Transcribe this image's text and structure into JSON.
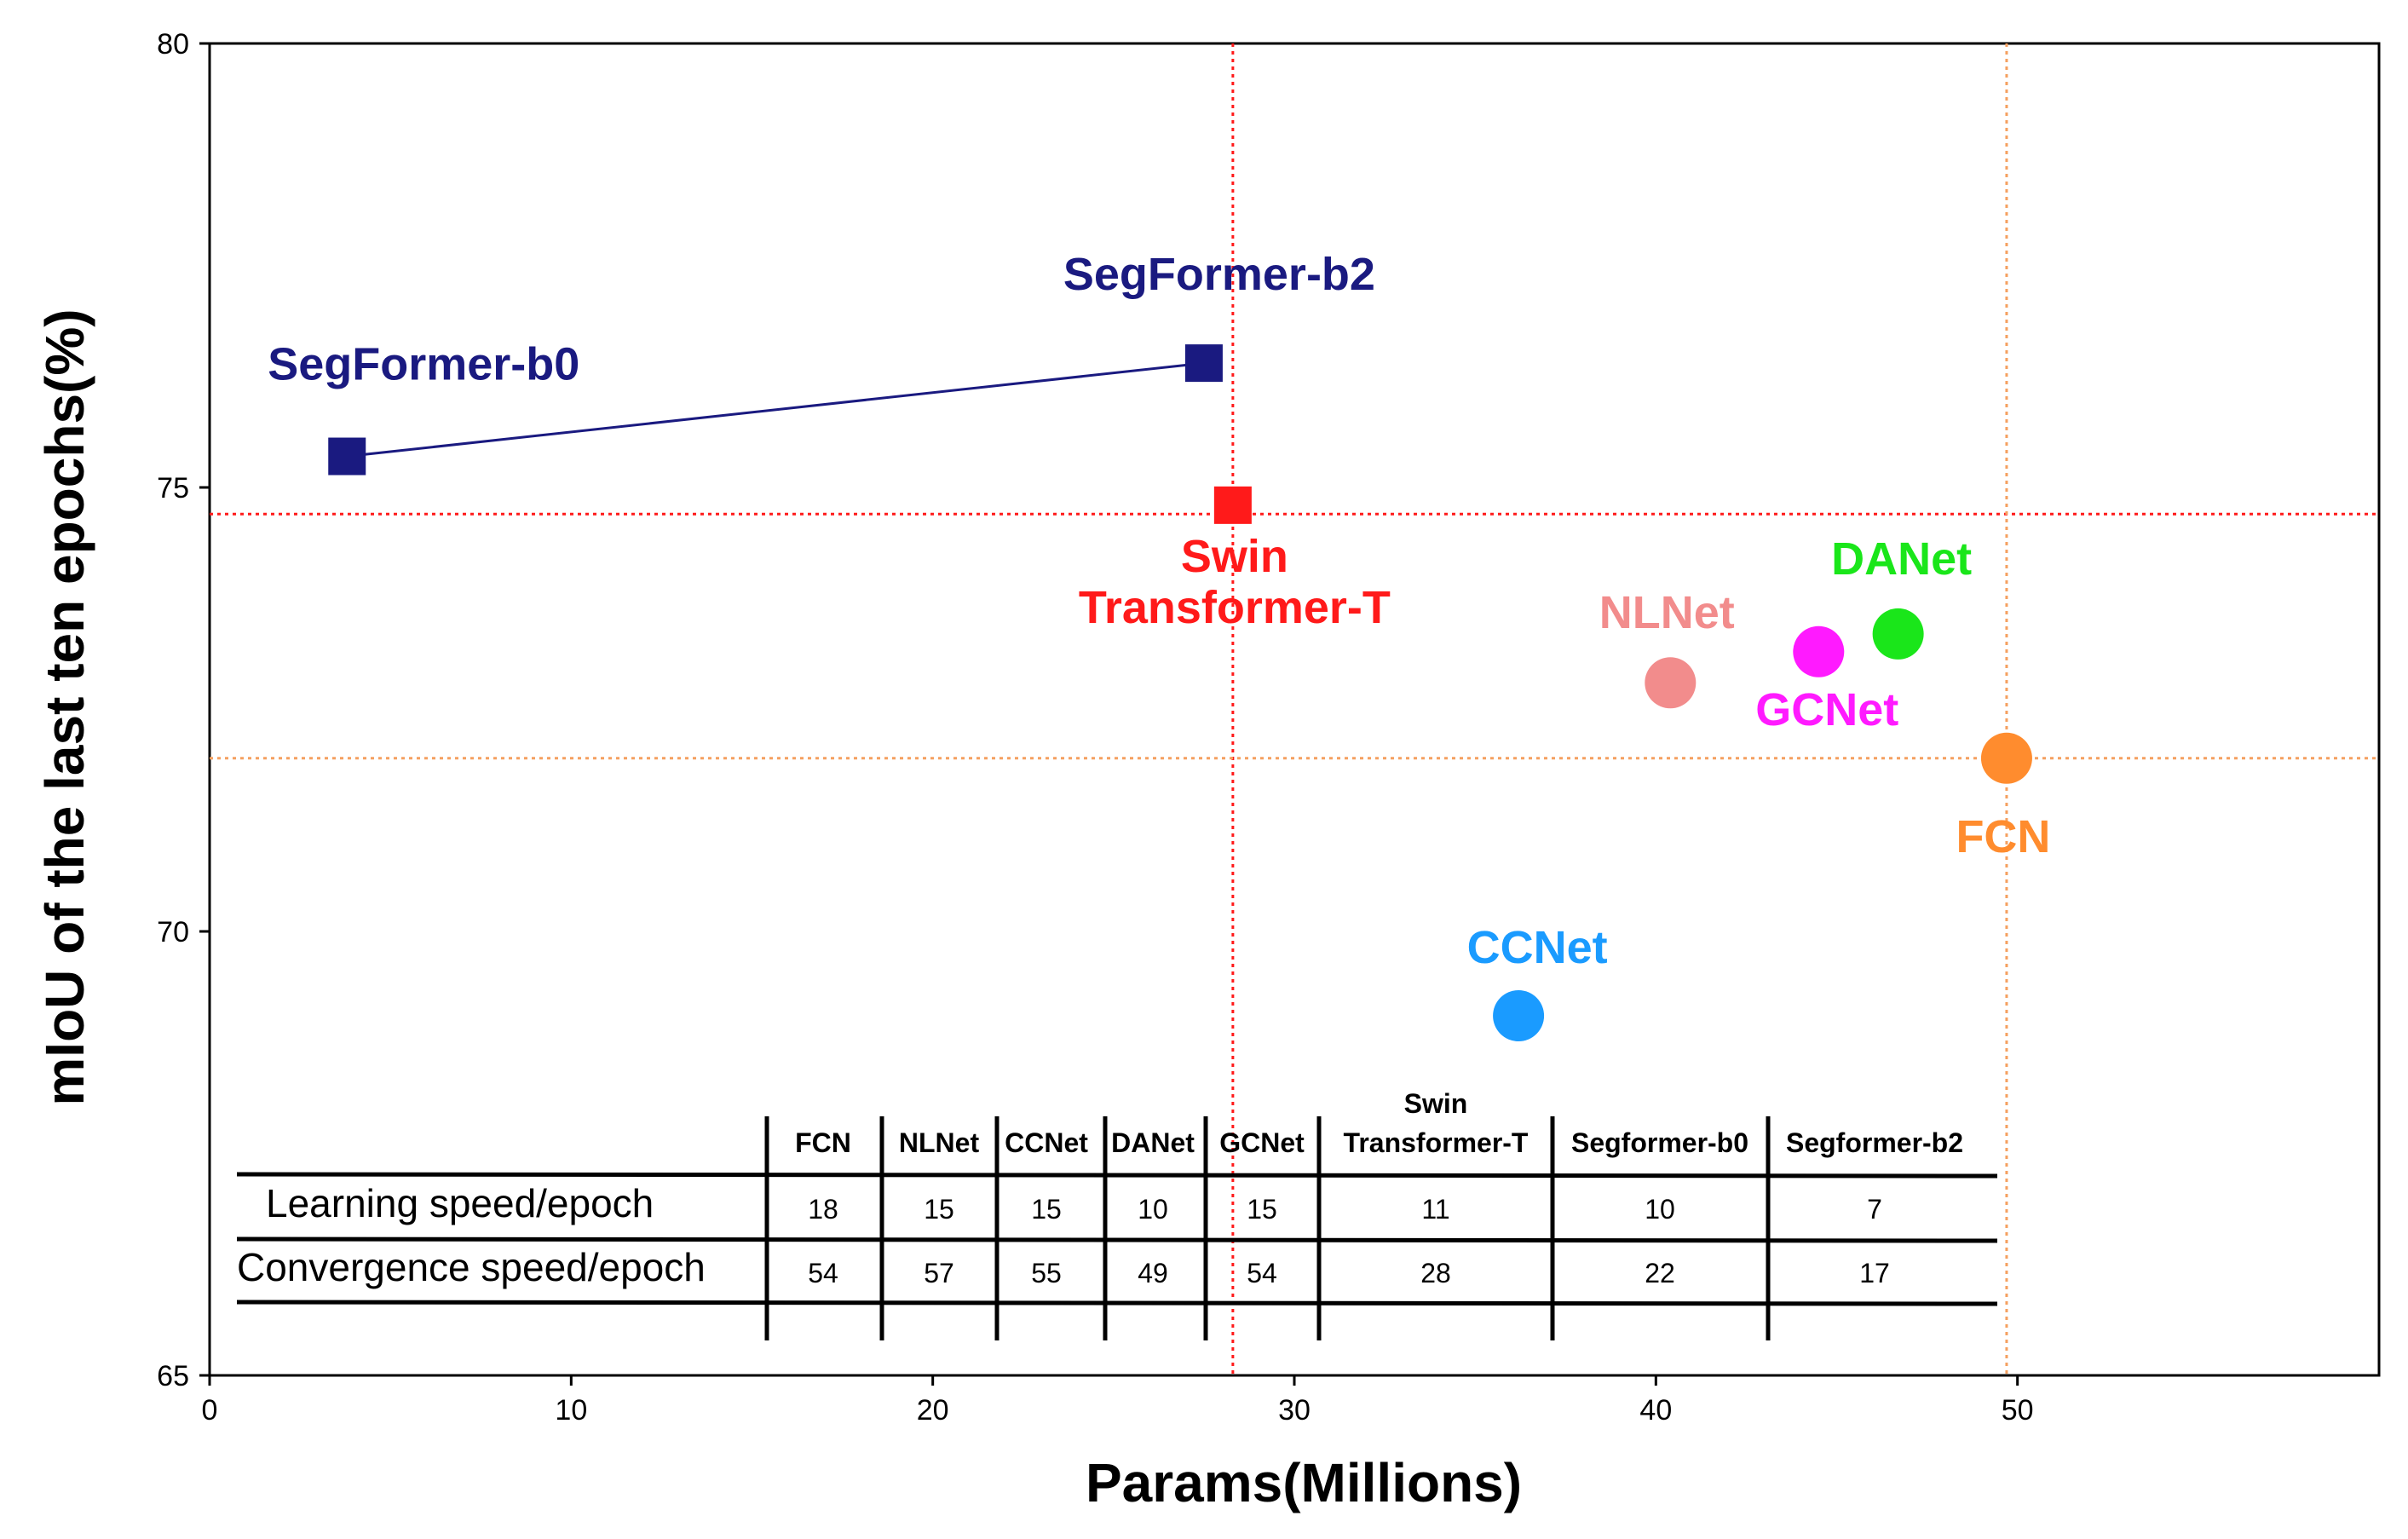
{
  "chart_data": {
    "type": "scatter",
    "xlabel": "Params(Millions)",
    "ylabel": "mIoU of the last ten epochs(%)",
    "xlim": [
      0,
      60
    ],
    "ylim": [
      65,
      80
    ],
    "xticks": [
      "0",
      "10",
      "20",
      "30",
      "40",
      "50"
    ],
    "yticks": [
      "65",
      "70",
      "75",
      "80"
    ],
    "reference_lines": [
      {
        "name": "swin-vertical",
        "axis": "x",
        "value": 28.3,
        "color": "#ff1a1a"
      },
      {
        "name": "swin-horizontal",
        "axis": "y",
        "value": 74.7,
        "color": "#ff1a1a"
      },
      {
        "name": "fcn-vertical",
        "axis": "x",
        "value": 49.7,
        "color": "#f5a060"
      },
      {
        "name": "fcn-horizontal",
        "axis": "y",
        "value": 71.95,
        "color": "#f5a060"
      }
    ],
    "series": [
      {
        "name": "SegFormer-b0",
        "x": 3.8,
        "y": 75.35,
        "marker": "square",
        "color": "#1a1a80"
      },
      {
        "name": "SegFormer-b2",
        "x": 27.5,
        "y": 76.4,
        "marker": "square",
        "color": "#1a1a80"
      },
      {
        "name": "Swin Transformer-T",
        "x": 28.3,
        "y": 74.8,
        "marker": "square",
        "color": "#ff1a1a"
      },
      {
        "name": "NLNet",
        "x": 40.4,
        "y": 72.8,
        "marker": "circle",
        "color": "#f28c8c"
      },
      {
        "name": "GCNet",
        "x": 44.5,
        "y": 73.15,
        "marker": "circle",
        "color": "#ff1aff"
      },
      {
        "name": "DANet",
        "x": 46.7,
        "y": 73.35,
        "marker": "circle",
        "color": "#1ae61a"
      },
      {
        "name": "FCN",
        "x": 49.7,
        "y": 71.95,
        "marker": "circle",
        "color": "#ff8c2e"
      },
      {
        "name": "CCNet",
        "x": 36.2,
        "y": 69.05,
        "marker": "circle",
        "color": "#1a9bff"
      }
    ],
    "connected_line": {
      "from": "SegFormer-b0",
      "to": "SegFormer-b2",
      "color": "#1a1a80"
    },
    "labels": [
      {
        "text": "SegFormer-b0",
        "color": "#1a1a80"
      },
      {
        "text": "SegFormer-b2",
        "color": "#1a1a80"
      },
      {
        "text": "Swin",
        "color": "#ff1a1a"
      },
      {
        "text": "Transformer-T",
        "color": "#ff1a1a"
      },
      {
        "text": "NLNet",
        "color": "#f28c8c"
      },
      {
        "text": "GCNet",
        "color": "#ff1aff"
      },
      {
        "text": "DANet",
        "color": "#1ae61a"
      },
      {
        "text": "FCN",
        "color": "#ff8c2e"
      },
      {
        "text": "CCNet",
        "color": "#1a9bff"
      }
    ],
    "table": {
      "columns": [
        "FCN",
        "NLNet",
        "CCNet",
        "DANet",
        "GCNet",
        "Swin Transformer-T",
        "Segformer-b0",
        "Segformer-b2"
      ],
      "rows": [
        {
          "label": "Learning speed/epoch",
          "values": [
            "18",
            "15",
            "15",
            "10",
            "15",
            "11",
            "10",
            "7"
          ]
        },
        {
          "label": "Convergence speed/epoch",
          "values": [
            "54",
            "57",
            "55",
            "49",
            "54",
            "28",
            "22",
            "17"
          ]
        }
      ]
    }
  }
}
